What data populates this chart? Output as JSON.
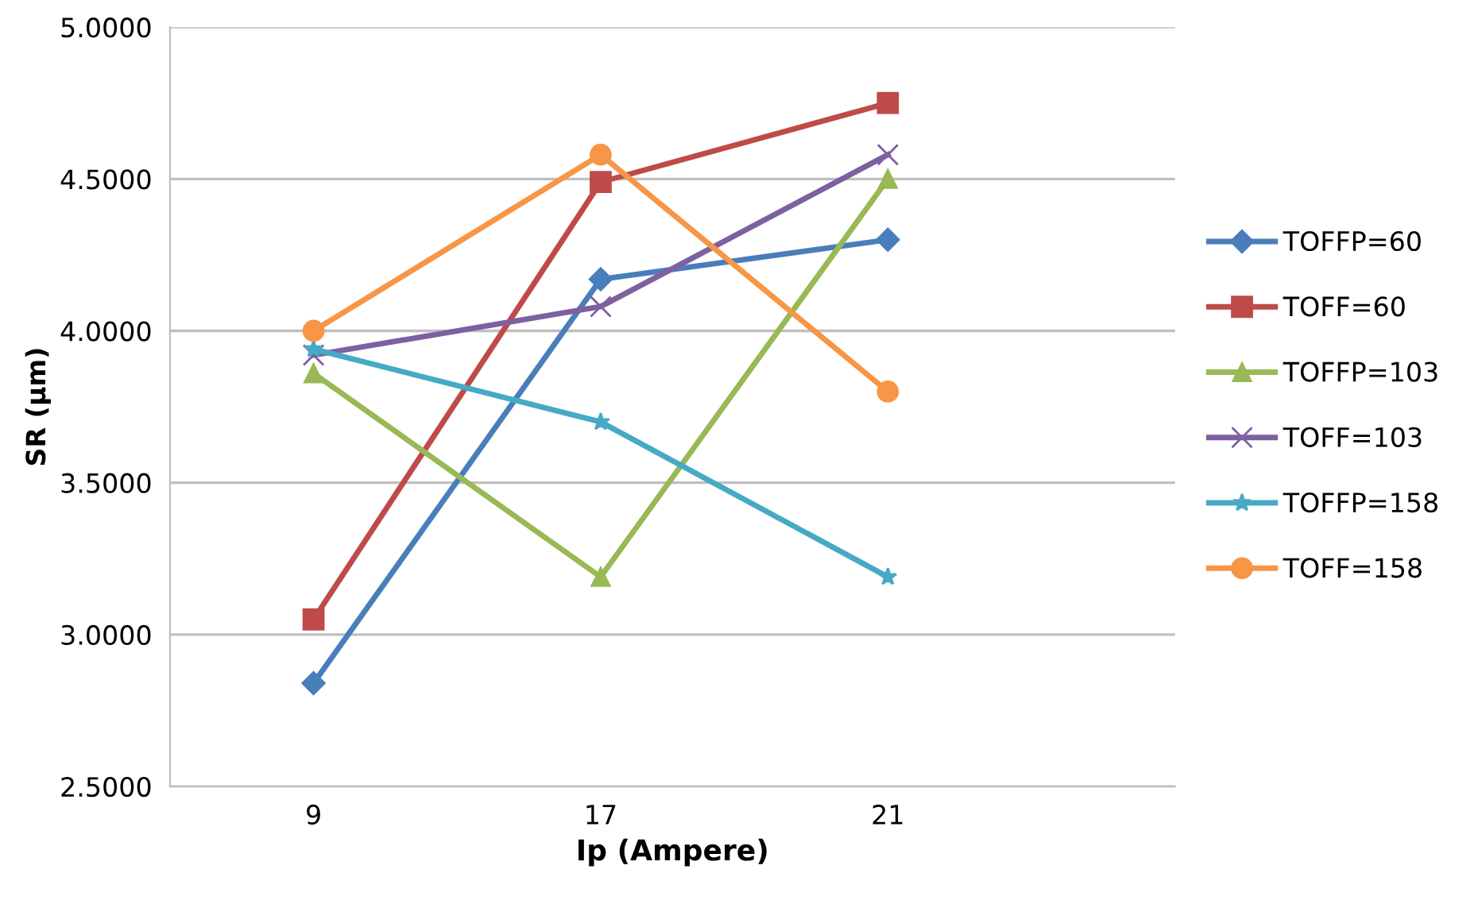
{
  "chart_data": {
    "type": "line",
    "xlabel": "Ip (Ampere)",
    "ylabel": "SR (µm)",
    "categories": [
      "9",
      "17",
      "21"
    ],
    "series": [
      {
        "name": "TOFFP=60",
        "color": "#4a7ebb",
        "marker": "diamond",
        "values": [
          2.84,
          4.17,
          4.3
        ]
      },
      {
        "name": "TOFF=60",
        "color": "#be4b48",
        "marker": "square",
        "values": [
          3.05,
          4.49,
          4.75
        ]
      },
      {
        "name": "TOFFP=103",
        "color": "#98b954",
        "marker": "triangle",
        "values": [
          3.86,
          3.19,
          4.5
        ]
      },
      {
        "name": "TOFF=103",
        "color": "#7d60a0",
        "marker": "cross",
        "values": [
          3.92,
          4.08,
          4.58
        ]
      },
      {
        "name": "TOFFP=158",
        "color": "#46aac5",
        "marker": "star",
        "values": [
          3.94,
          3.7,
          3.19
        ]
      },
      {
        "name": "TOFF=158",
        "color": "#f79646",
        "marker": "circle",
        "values": [
          4.0,
          4.58,
          3.8
        ]
      }
    ],
    "ylim": [
      2.5,
      5.0
    ],
    "yticks": [
      {
        "value": 2.5,
        "label": "2.5000"
      },
      {
        "value": 3.0,
        "label": "3.0000"
      },
      {
        "value": 3.5,
        "label": "3.5000"
      },
      {
        "value": 4.0,
        "label": "4.0000"
      },
      {
        "value": 4.5,
        "label": "4.5000"
      },
      {
        "value": 5.0,
        "label": "5.0000"
      }
    ],
    "grid": "y",
    "legend": "right",
    "line_style": "solid"
  }
}
